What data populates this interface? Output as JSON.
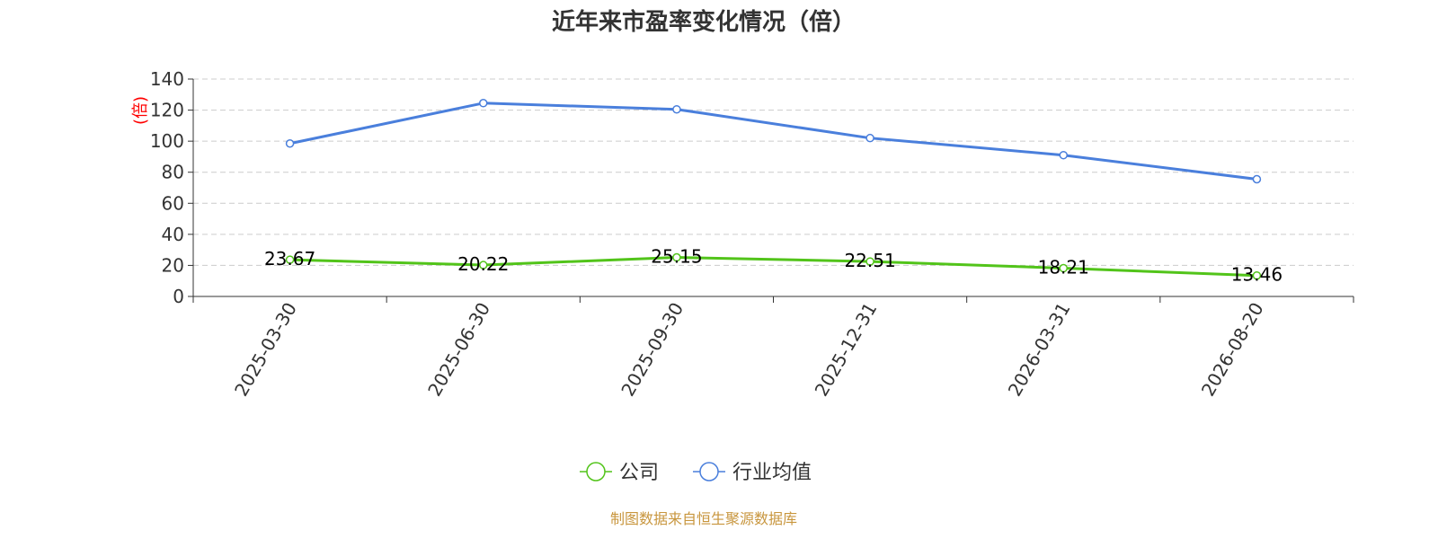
{
  "chart_data": {
    "type": "line",
    "title": "近年来市盈率变化情况（倍）",
    "ylabel": "(倍)",
    "ylim": [
      0,
      140
    ],
    "yticks": [
      0,
      20,
      40,
      60,
      80,
      100,
      120,
      140
    ],
    "grid": true,
    "categories": [
      "2025-03-30",
      "2025-06-30",
      "2025-09-30",
      "2025-12-31",
      "2026-03-31",
      "2026-08-20"
    ],
    "series": [
      {
        "name": "公司",
        "values": [
          23.67,
          20.22,
          25.15,
          22.51,
          18.21,
          13.46
        ],
        "labels": [
          "23.67",
          "20.22",
          "25.15",
          "22.51",
          "18.21",
          "13.46"
        ],
        "color": "#52c41a"
      },
      {
        "name": "行业均值",
        "values": [
          98.5,
          124.5,
          120.5,
          102,
          91,
          75.5
        ],
        "color": "#4a7fdc"
      }
    ],
    "legend_position": "bottom-center",
    "source": "制图数据来自恒生聚源数据库",
    "colors": {
      "ylabel": "#ff0000",
      "source": "#c8963e",
      "axis": "#333333",
      "grid": "#cccccc"
    }
  }
}
